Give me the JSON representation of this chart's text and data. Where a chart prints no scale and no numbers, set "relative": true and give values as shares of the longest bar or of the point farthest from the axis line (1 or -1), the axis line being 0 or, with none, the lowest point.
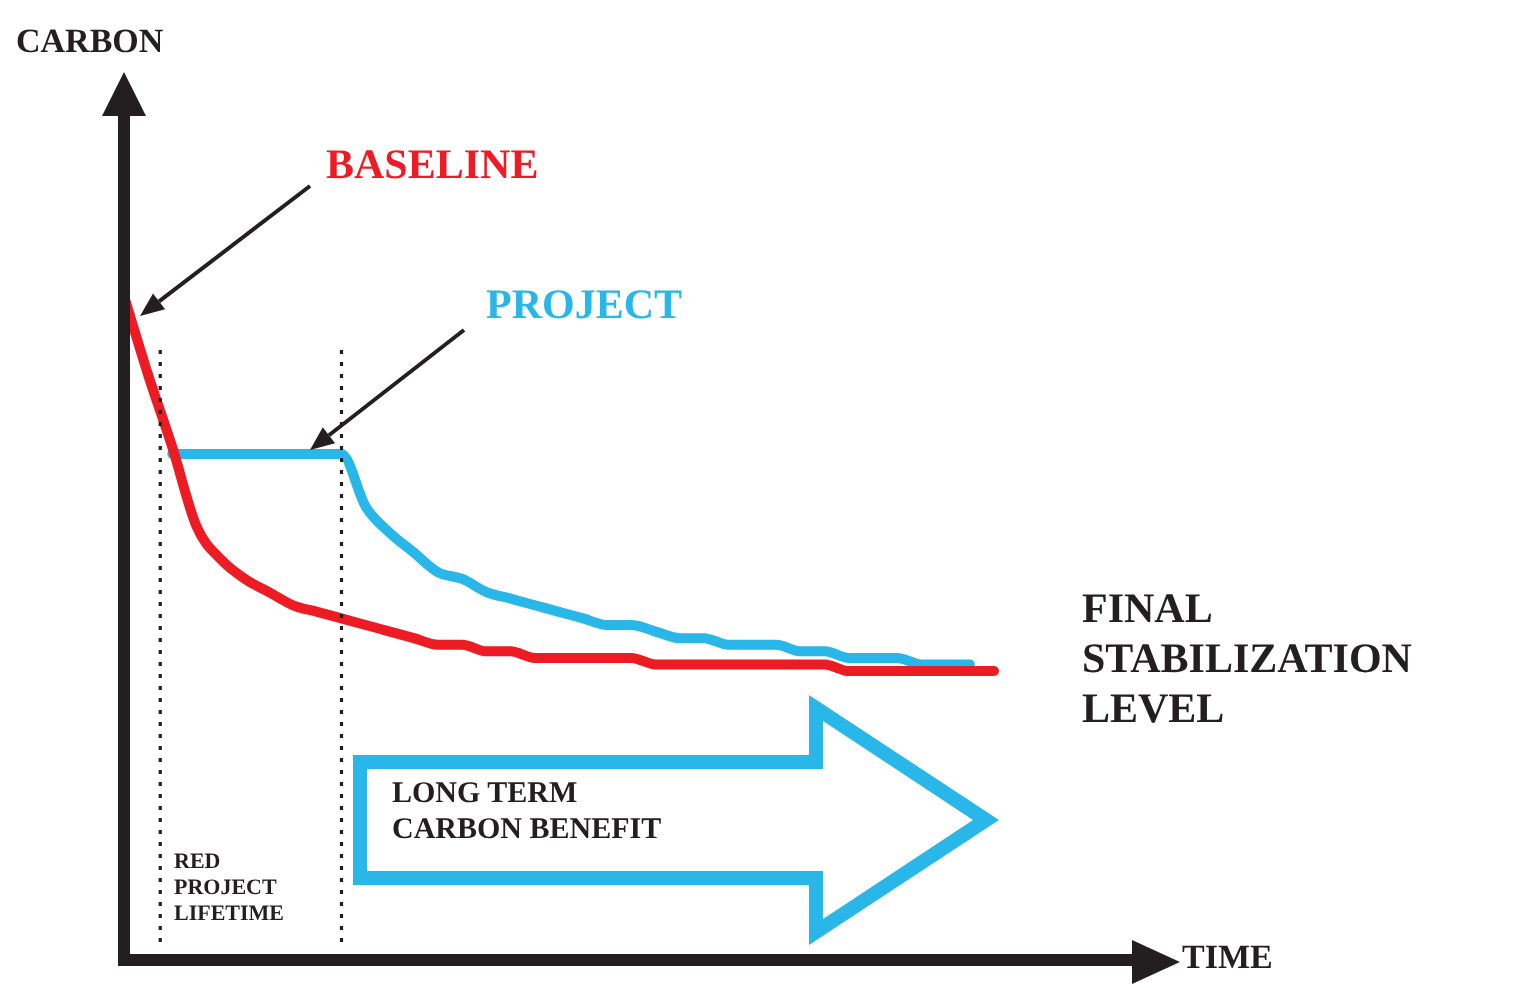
{
  "chart_data": {
    "type": "line",
    "relative": true,
    "legend": false,
    "marker": "none",
    "line_style": "solid",
    "categories": [
      null,
      null,
      null,
      null,
      null,
      null,
      null,
      null,
      null,
      null,
      null,
      null,
      null,
      null,
      null,
      null,
      null,
      null,
      null,
      null,
      null,
      null,
      null,
      null,
      null,
      null,
      null,
      null,
      null,
      null,
      null,
      null,
      null,
      null,
      null,
      null,
      null
    ],
    "series": [
      {
        "name": "BASELINE",
        "color": "#ed1c24",
        "values": [
          1.0,
          0.88,
          0.77,
          0.65,
          0.6,
          0.57,
          0.55,
          0.53,
          0.52,
          0.51,
          0.5,
          0.49,
          0.48,
          0.47,
          0.47,
          0.46,
          0.46,
          0.45,
          0.45,
          0.45,
          0.45,
          0.45,
          0.44,
          0.44,
          0.44,
          0.44,
          0.44,
          0.44,
          0.44,
          0.44,
          0.43,
          0.43,
          0.43,
          0.43,
          0.43,
          0.43,
          0.43
        ]
      },
      {
        "name": "PROJECT",
        "color": "#29b6e8",
        "values": [
          null,
          null,
          0.76,
          0.76,
          0.76,
          0.76,
          0.76,
          0.76,
          0.76,
          0.76,
          0.68,
          0.64,
          0.61,
          0.58,
          0.57,
          0.55,
          0.54,
          0.53,
          0.52,
          0.51,
          0.5,
          0.5,
          0.49,
          0.48,
          0.48,
          0.47,
          0.47,
          0.47,
          0.46,
          0.46,
          0.45,
          0.45,
          0.45,
          0.44,
          0.44,
          0.44,
          null
        ]
      }
    ],
    "annotations": [
      "CARBON",
      "TIME",
      "RED PROJECT LIFETIME",
      "LONG TERM CARBON BENEFIT",
      "FINAL STABILIZATION LEVEL"
    ]
  }
}
